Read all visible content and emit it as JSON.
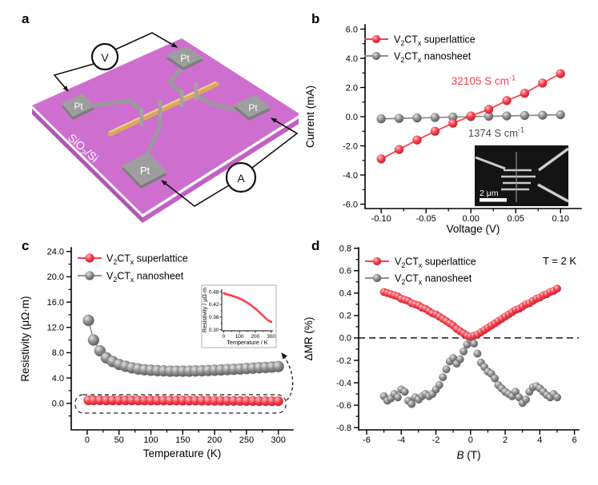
{
  "panel_labels": {
    "a": "a",
    "b": "b",
    "c": "c",
    "d": "d"
  },
  "colors": {
    "red": {
      "light": "#ffc4c8",
      "main": "#f7424e",
      "dark": "#c21f30"
    },
    "gray": {
      "light": "#e4e4e4",
      "main": "#8f8f8f",
      "dark": "#595959"
    },
    "annotation_dark": "#4a4a4a",
    "axis": "#000000"
  },
  "panel_a": {
    "substrate_label": {
      "pre": "SiO",
      "sub": "2",
      "post": "/Si"
    },
    "electrode_label": "Pt",
    "voltmeter_label": "V",
    "ammeter_label": "A",
    "colors": {
      "substrate_top": "#ce6fd0",
      "substrate_side_left": "#b156b3",
      "substrate_side_right": "#c161c3",
      "electrode": "#9e9e9e",
      "electrode_side": "#7e7e7e",
      "trace": "#9a9a9a",
      "nanowire": "#d9a95c",
      "nanowire_highlight": "#eecf92",
      "wire": "#111111"
    }
  },
  "chart_data": [
    {
      "id": "b",
      "type": "scatter",
      "xlabel": "Voltage (V)",
      "ylabel": "Current (mA)",
      "xlim": [
        -0.118,
        0.123
      ],
      "ylim": [
        -6.3,
        6.3
      ],
      "xticks": {
        "values": [
          -0.1,
          -0.05,
          0.0,
          0.05,
          0.1
        ],
        "labels": [
          "-0.10",
          "-0.05",
          "0.00",
          "0.05",
          "0.10"
        ]
      },
      "yticks": {
        "values": [
          -6,
          -4,
          -2,
          0,
          2,
          4,
          6
        ],
        "labels": [
          "-6.0",
          "-4.0",
          "-2.0",
          "0.0",
          "2.0",
          "4.0",
          "6.0"
        ]
      },
      "x": [
        -0.1,
        -0.08,
        -0.06,
        -0.04,
        -0.02,
        0.0,
        0.02,
        0.04,
        0.06,
        0.08,
        0.1
      ],
      "series": [
        {
          "key": "superlattice",
          "color": "red",
          "label_parts": [
            {
              "t": "V"
            },
            {
              "t": "2",
              "sub": true
            },
            {
              "t": "CT"
            },
            {
              "t": "x",
              "sub": true
            },
            {
              "t": " superlattice"
            }
          ],
          "values": [
            -2.9,
            -2.25,
            -1.6,
            -1.0,
            -0.45,
            0.05,
            0.5,
            1.1,
            1.6,
            2.3,
            2.95
          ]
        },
        {
          "key": "nanosheet",
          "color": "gray",
          "label_parts": [
            {
              "t": "V"
            },
            {
              "t": "2",
              "sub": true
            },
            {
              "t": "CT"
            },
            {
              "t": "x",
              "sub": true
            },
            {
              "t": " nanosheet"
            }
          ],
          "values": [
            -0.15,
            -0.12,
            -0.09,
            -0.06,
            -0.03,
            0.0,
            0.03,
            0.05,
            0.08,
            0.1,
            0.13
          ]
        }
      ],
      "annotations": [
        {
          "parts": [
            {
              "t": "32105 S cm"
            },
            {
              "t": "-1",
              "sup": true
            }
          ],
          "color": "red"
        },
        {
          "parts": [
            {
              "t": "1374 S cm"
            },
            {
              "t": "-1",
              "sup": true
            }
          ],
          "color": "annotation_dark"
        }
      ],
      "sem_inset": {
        "scale_label": "2 μm"
      }
    },
    {
      "id": "c",
      "type": "scatter",
      "xlabel": "Temperature (K)",
      "ylabel": "Resistivity (μΩ·m)",
      "xlim": [
        -25,
        323
      ],
      "ylim": [
        -4.2,
        24.6
      ],
      "xticks": {
        "values": [
          0,
          50,
          100,
          150,
          200,
          250,
          300
        ],
        "labels": [
          "0",
          "50",
          "100",
          "150",
          "200",
          "250",
          "300"
        ]
      },
      "yticks": {
        "values": [
          0,
          4,
          8,
          12,
          16,
          20,
          24
        ],
        "labels": [
          "0.0",
          "4.0",
          "8.0",
          "12.0",
          "16.0",
          "20.0",
          "24.0"
        ]
      },
      "x": [
        2,
        10,
        20,
        30,
        40,
        50,
        60,
        70,
        80,
        90,
        100,
        110,
        120,
        130,
        140,
        150,
        160,
        170,
        180,
        190,
        200,
        210,
        220,
        230,
        240,
        250,
        260,
        270,
        280,
        290,
        300
      ],
      "series": [
        {
          "key": "superlattice",
          "color": "red",
          "label_parts": [
            {
              "t": "V"
            },
            {
              "t": "2",
              "sub": true
            },
            {
              "t": "CT"
            },
            {
              "t": "x",
              "sub": true
            },
            {
              "t": " superlattice"
            }
          ],
          "values": [
            0.473,
            0.47,
            0.468,
            0.466,
            0.464,
            0.462,
            0.459,
            0.457,
            0.454,
            0.451,
            0.448,
            0.445,
            0.441,
            0.437,
            0.433,
            0.428,
            0.423,
            0.418,
            0.412,
            0.406,
            0.4,
            0.394,
            0.387,
            0.38,
            0.373,
            0.366,
            0.359,
            0.352,
            0.345,
            0.341,
            0.337
          ]
        },
        {
          "key": "nanosheet",
          "color": "gray",
          "label_parts": [
            {
              "t": "V"
            },
            {
              "t": "2",
              "sub": true
            },
            {
              "t": "CT"
            },
            {
              "t": "x",
              "sub": true
            },
            {
              "t": " nanosheet"
            }
          ],
          "values": [
            13.1,
            10.0,
            8.3,
            7.2,
            6.6,
            6.15,
            5.85,
            5.6,
            5.42,
            5.3,
            5.22,
            5.16,
            5.12,
            5.09,
            5.08,
            5.08,
            5.09,
            5.11,
            5.14,
            5.18,
            5.22,
            5.27,
            5.32,
            5.37,
            5.43,
            5.49,
            5.55,
            5.61,
            5.67,
            5.73,
            5.8
          ]
        }
      ],
      "highlight_box": {
        "around": "superlattice",
        "style": "dashed"
      },
      "inset": {
        "series_key": "superlattice",
        "xlabel": "Temperature / K",
        "ylabel": "Resistivity / μΩ·m",
        "xlim": [
          -12,
          312
        ],
        "ylim": [
          0.295,
          0.492
        ],
        "xticks": {
          "values": [
            0,
            100,
            200,
            300
          ],
          "labels": [
            "0",
            "100",
            "200",
            "300"
          ]
        },
        "yticks": {
          "values": [
            0.3,
            0.36,
            0.42,
            0.48
          ],
          "labels": [
            "0.30",
            "0.36",
            "0.42",
            "0.48"
          ]
        }
      }
    },
    {
      "id": "d",
      "type": "scatter",
      "xlabel_parts": [
        {
          "t": "B",
          "italic": true
        },
        {
          "t": " (T)"
        }
      ],
      "ylabel": "ΔMR (%)",
      "xlim": [
        -6.46,
        6.25
      ],
      "ylim": [
        -0.82,
        0.805
      ],
      "xticks": {
        "values": [
          -6,
          -4,
          -2,
          0,
          2,
          4,
          6
        ],
        "labels": [
          "-6",
          "-4",
          "-2",
          "0",
          "2",
          "4",
          "6"
        ]
      },
      "yticks": {
        "values": [
          -0.8,
          -0.6,
          -0.4,
          -0.2,
          0.0,
          0.2,
          0.4,
          0.6,
          0.8
        ],
        "labels": [
          "-0.8",
          "-0.6",
          "-0.4",
          "-0.2",
          "0.0",
          "0.2",
          "0.4",
          "0.6",
          "0.8"
        ]
      },
      "x": [
        -5.0,
        -4.8,
        -4.6,
        -4.4,
        -4.2,
        -4.0,
        -3.8,
        -3.6,
        -3.4,
        -3.2,
        -3.0,
        -2.8,
        -2.6,
        -2.4,
        -2.2,
        -2.0,
        -1.8,
        -1.6,
        -1.4,
        -1.2,
        -1.0,
        -0.8,
        -0.6,
        -0.4,
        -0.2,
        0.0,
        0.2,
        0.4,
        0.6,
        0.8,
        1.0,
        1.2,
        1.4,
        1.6,
        1.8,
        2.0,
        2.2,
        2.4,
        2.6,
        2.8,
        3.0,
        3.2,
        3.4,
        3.6,
        3.8,
        4.0,
        4.2,
        4.4,
        4.6,
        4.8,
        5.0
      ],
      "series": [
        {
          "key": "superlattice",
          "color": "red",
          "label_parts": [
            {
              "t": "V"
            },
            {
              "t": "2",
              "sub": true
            },
            {
              "t": "CT"
            },
            {
              "t": "x",
              "sub": true
            },
            {
              "t": " superlattice"
            }
          ],
          "values": [
            0.41,
            0.4,
            0.39,
            0.38,
            0.37,
            0.35,
            0.34,
            0.33,
            0.31,
            0.3,
            0.29,
            0.27,
            0.26,
            0.24,
            0.22,
            0.21,
            0.19,
            0.17,
            0.15,
            0.13,
            0.11,
            0.08,
            0.06,
            0.04,
            0.02,
            0.01,
            0.02,
            0.03,
            0.05,
            0.07,
            0.09,
            0.11,
            0.13,
            0.15,
            0.17,
            0.19,
            0.21,
            0.23,
            0.25,
            0.26,
            0.28,
            0.3,
            0.31,
            0.33,
            0.35,
            0.36,
            0.38,
            0.39,
            0.41,
            0.42,
            0.44
          ]
        },
        {
          "key": "nanosheet",
          "color": "gray",
          "label_parts": [
            {
              "t": "V"
            },
            {
              "t": "2",
              "sub": true
            },
            {
              "t": "CT"
            },
            {
              "t": "x",
              "sub": true
            },
            {
              "t": " nanosheet"
            }
          ],
          "values": [
            -0.52,
            -0.56,
            -0.54,
            -0.5,
            -0.53,
            -0.46,
            -0.48,
            -0.56,
            -0.59,
            -0.53,
            -0.55,
            -0.52,
            -0.5,
            -0.52,
            -0.5,
            -0.46,
            -0.42,
            -0.35,
            -0.28,
            -0.21,
            -0.18,
            -0.23,
            -0.19,
            -0.12,
            -0.06,
            -0.02,
            -0.05,
            -0.14,
            -0.22,
            -0.26,
            -0.3,
            -0.32,
            -0.36,
            -0.42,
            -0.45,
            -0.48,
            -0.5,
            -0.52,
            -0.48,
            -0.53,
            -0.58,
            -0.55,
            -0.48,
            -0.44,
            -0.43,
            -0.45,
            -0.48,
            -0.51,
            -0.53,
            -0.5,
            -0.53
          ]
        }
      ],
      "zero_line": "dashed",
      "condition_label": "T = 2 K"
    }
  ]
}
